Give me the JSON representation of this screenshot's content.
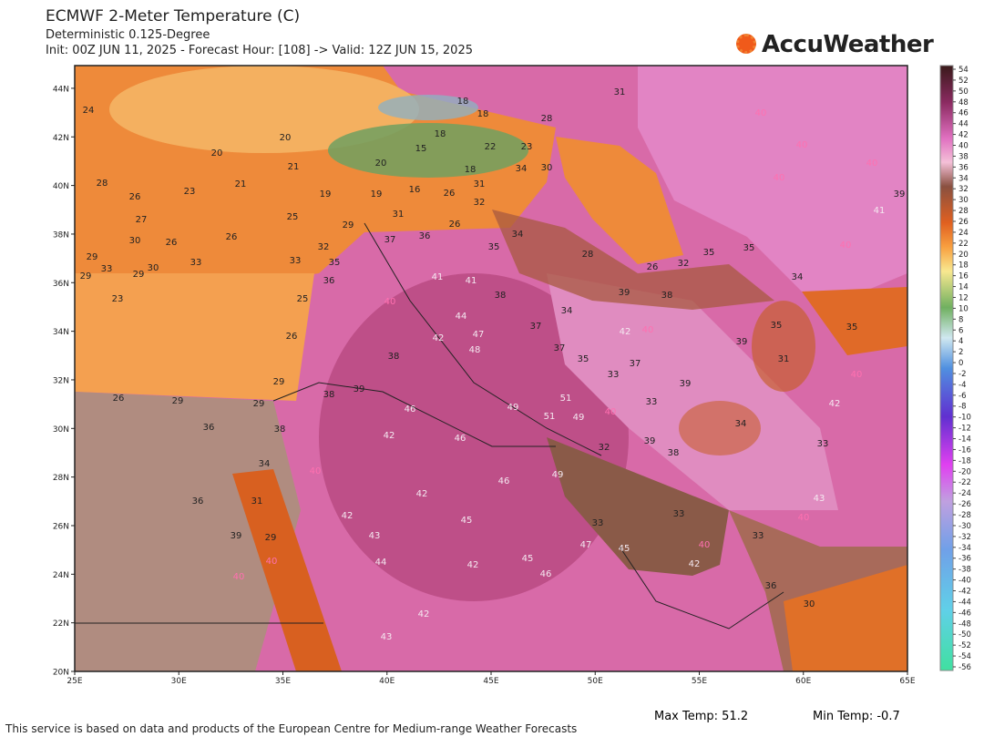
{
  "header": {
    "title": "ECMWF 2-Meter Temperature (C)",
    "subtitle": "Deterministic 0.125-Degree",
    "run_info": "Init: 00Z JUN 11, 2025 - Forecast Hour: [108] -> Valid: 12Z JUN 15, 2025",
    "brand": "AccuWeather"
  },
  "lat_ticks": [
    {
      "value": 44,
      "label": "44N"
    },
    {
      "value": 42,
      "label": "42N"
    },
    {
      "value": 40,
      "label": "40N"
    },
    {
      "value": 38,
      "label": "38N"
    },
    {
      "value": 36,
      "label": "36N"
    },
    {
      "value": 34,
      "label": "34N"
    },
    {
      "value": 32,
      "label": "32N"
    },
    {
      "value": 30,
      "label": "30N"
    },
    {
      "value": 28,
      "label": "28N"
    },
    {
      "value": 26,
      "label": "26N"
    },
    {
      "value": 24,
      "label": "24N"
    },
    {
      "value": 22,
      "label": "22N"
    },
    {
      "value": 20,
      "label": "20N"
    }
  ],
  "lon_ticks": [
    {
      "value": 25,
      "label": "25E"
    },
    {
      "value": 30,
      "label": "30E"
    },
    {
      "value": 35,
      "label": "35E"
    },
    {
      "value": 40,
      "label": "40E"
    },
    {
      "value": 45,
      "label": "45E"
    },
    {
      "value": 50,
      "label": "50E"
    },
    {
      "value": 55,
      "label": "55E"
    },
    {
      "value": 60,
      "label": "60E"
    },
    {
      "value": 65,
      "label": "65E"
    }
  ],
  "colorbar_ticks": [
    54,
    52,
    50,
    48,
    46,
    44,
    42,
    40,
    38,
    36,
    34,
    32,
    30,
    28,
    26,
    24,
    22,
    20,
    18,
    16,
    14,
    12,
    10,
    8,
    6,
    4,
    2,
    0,
    -2,
    -4,
    -6,
    -8,
    -10,
    -12,
    -14,
    -16,
    -18,
    -20,
    -22,
    -24,
    -26,
    -28,
    -30,
    -32,
    -34,
    -36,
    -38,
    -40,
    -42,
    -44,
    -46,
    -48,
    -50,
    -52,
    -54,
    -56
  ],
  "point_labels": [
    24,
    18,
    18,
    18,
    28,
    31,
    20,
    20,
    21,
    15,
    22,
    23,
    20,
    18,
    34,
    30,
    26,
    23,
    21,
    19,
    19,
    16,
    26,
    31,
    32,
    28,
    27,
    30,
    26,
    26,
    25,
    29,
    31,
    37,
    36,
    26,
    34,
    35,
    33,
    32,
    35,
    33,
    30,
    29,
    36,
    41,
    41,
    38,
    40,
    44,
    47,
    42,
    48,
    38,
    39,
    38,
    46,
    49,
    51,
    51,
    49,
    42,
    46,
    46,
    32,
    49,
    40,
    42,
    42,
    45,
    43,
    47,
    45,
    44,
    42,
    46,
    42,
    43,
    33,
    33,
    33,
    45,
    40,
    42,
    36,
    30,
    43,
    40,
    38,
    39,
    33,
    33,
    37,
    40,
    42,
    39,
    34,
    33,
    42,
    40,
    31,
    35,
    39,
    35,
    34,
    35,
    35,
    40,
    41,
    39,
    40,
    40,
    40,
    40,
    28,
    26,
    32,
    38,
    39,
    34,
    37,
    37,
    35,
    40,
    36,
    36,
    39,
    29,
    40,
    40,
    31,
    34,
    38,
    29,
    29,
    26,
    29,
    26,
    25,
    23,
    29,
    29,
    33
  ],
  "stats": {
    "max": "Max Temp: 51.2",
    "min": "Min Temp: -0.7"
  },
  "footer": "This service is based on data and products of the European Centre for Medium-range Weather Forecasts"
}
